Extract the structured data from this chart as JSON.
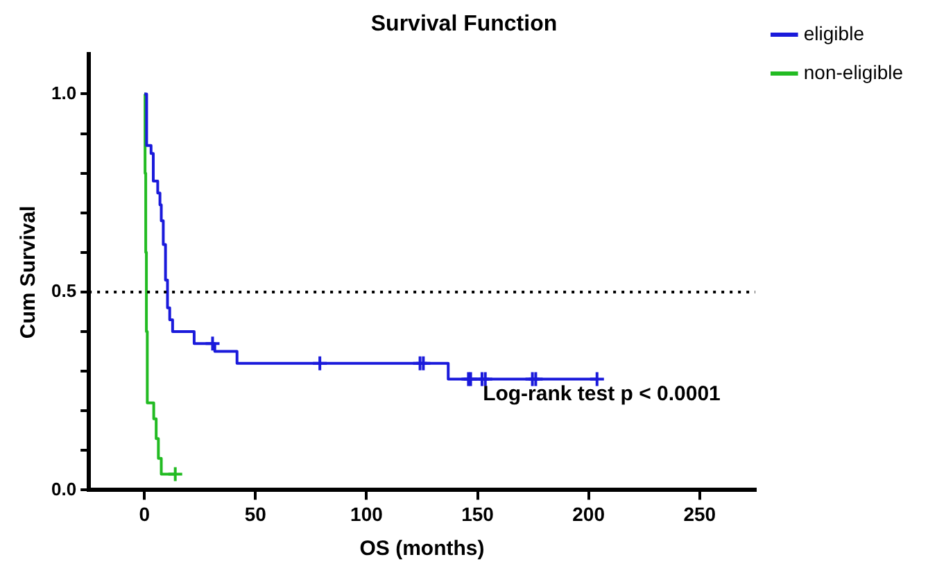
{
  "chart_data": {
    "type": "step",
    "title": "Survival Function",
    "xlabel": "OS (months)",
    "ylabel": "Cum Survival",
    "xlim": [
      -25,
      275
    ],
    "xticks": [
      0,
      50,
      100,
      150,
      200,
      250
    ],
    "ylim": [
      0,
      1.1
    ],
    "yticks": [
      {
        "value": 0,
        "label": "0.0"
      },
      {
        "value": 0.1,
        "label": null
      },
      {
        "value": 0.2,
        "label": null
      },
      {
        "value": 0.3,
        "label": null
      },
      {
        "value": 0.4,
        "label": null
      },
      {
        "value": 0.5,
        "label": "0.5"
      },
      {
        "value": 0.6,
        "label": null
      },
      {
        "value": 0.7,
        "label": null
      },
      {
        "value": 0.8,
        "label": null
      },
      {
        "value": 0.9,
        "label": null
      },
      {
        "value": 1,
        "label": "1.0"
      }
    ],
    "grid": false,
    "legend": "top right",
    "marker": "none",
    "series": [
      {
        "name": "eligible",
        "color": "#1a1adb",
        "x": [
          0,
          1,
          3,
          4,
          6,
          7,
          7.6,
          8.5,
          9.5,
          10.4,
          11.4,
          12.7,
          22.4,
          31.7,
          41.7,
          136.8,
          203.8
        ],
        "values": [
          1,
          0.87,
          0.85,
          0.78,
          0.75,
          0.72,
          0.68,
          0.62,
          0.53,
          0.46,
          0.43,
          0.4,
          0.37,
          0.35,
          0.32,
          0.28,
          0.28
        ]
      },
      {
        "name": "non-eligible",
        "color": "#22bb22",
        "x": [
          0,
          0.3,
          0.6,
          0.9,
          1.3,
          4.2,
          5.3,
          6.3,
          7.6,
          13.9
        ],
        "values": [
          1,
          0.8,
          0.6,
          0.4,
          0.22,
          0.18,
          0.13,
          0.08,
          0.04,
          0.04
        ]
      },
      {
        "type": "scatter",
        "color": "#1a1adb",
        "marker": "cross",
        "x": [
          30.7,
          79,
          124.1,
          125.6,
          145.9,
          146.9,
          152,
          153.5,
          174.7,
          176.2,
          203.8
        ],
        "values": [
          0.37,
          0.32,
          0.32,
          0.32,
          0.28,
          0.28,
          0.28,
          0.28,
          0.28,
          0.28,
          0.28
        ]
      },
      {
        "type": "scatter",
        "color": "#22bb22",
        "marker": "cross",
        "x": [
          13.9
        ],
        "values": [
          0.04
        ]
      }
    ],
    "ref_lines": [
      {
        "axis": "y",
        "value": 0.5,
        "color": "#000000",
        "line_style": "dotted"
      }
    ],
    "annotations": [
      "Log-rank test p < 0.0001"
    ]
  }
}
